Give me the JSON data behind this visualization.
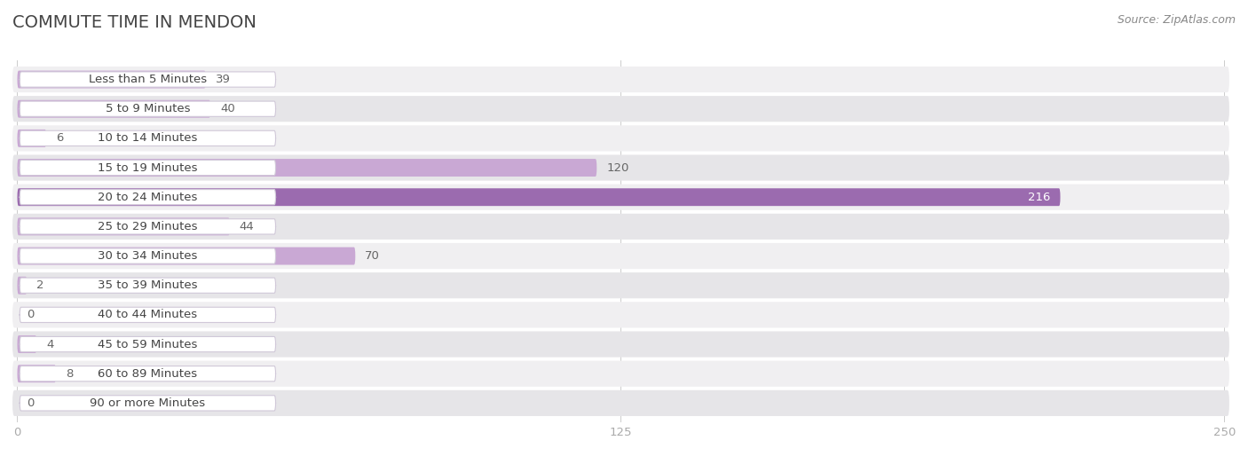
{
  "title": "COMMUTE TIME IN MENDON",
  "source": "Source: ZipAtlas.com",
  "categories": [
    "Less than 5 Minutes",
    "5 to 9 Minutes",
    "10 to 14 Minutes",
    "15 to 19 Minutes",
    "20 to 24 Minutes",
    "25 to 29 Minutes",
    "30 to 34 Minutes",
    "35 to 39 Minutes",
    "40 to 44 Minutes",
    "45 to 59 Minutes",
    "60 to 89 Minutes",
    "90 or more Minutes"
  ],
  "values": [
    39,
    40,
    6,
    120,
    216,
    44,
    70,
    2,
    0,
    4,
    8,
    0
  ],
  "data_max": 250,
  "xticks": [
    0,
    125,
    250
  ],
  "bar_color_light": "#c9a8d4",
  "bar_color_dark": "#9b6baf",
  "row_bg_odd": "#f0eff1",
  "row_bg_even": "#e6e5e8",
  "label_bg": "#ffffff",
  "label_border": "#d0c8d8",
  "title_fontsize": 14,
  "label_fontsize": 9.5,
  "value_fontsize": 9.5,
  "source_fontsize": 9,
  "title_color": "#444444",
  "label_color": "#444444",
  "value_color_light": "#666666",
  "value_color_dark": "#ffffff",
  "source_color": "#888888",
  "tick_color": "#aaaaaa",
  "grid_color": "#cccccc",
  "background_color": "#ffffff"
}
